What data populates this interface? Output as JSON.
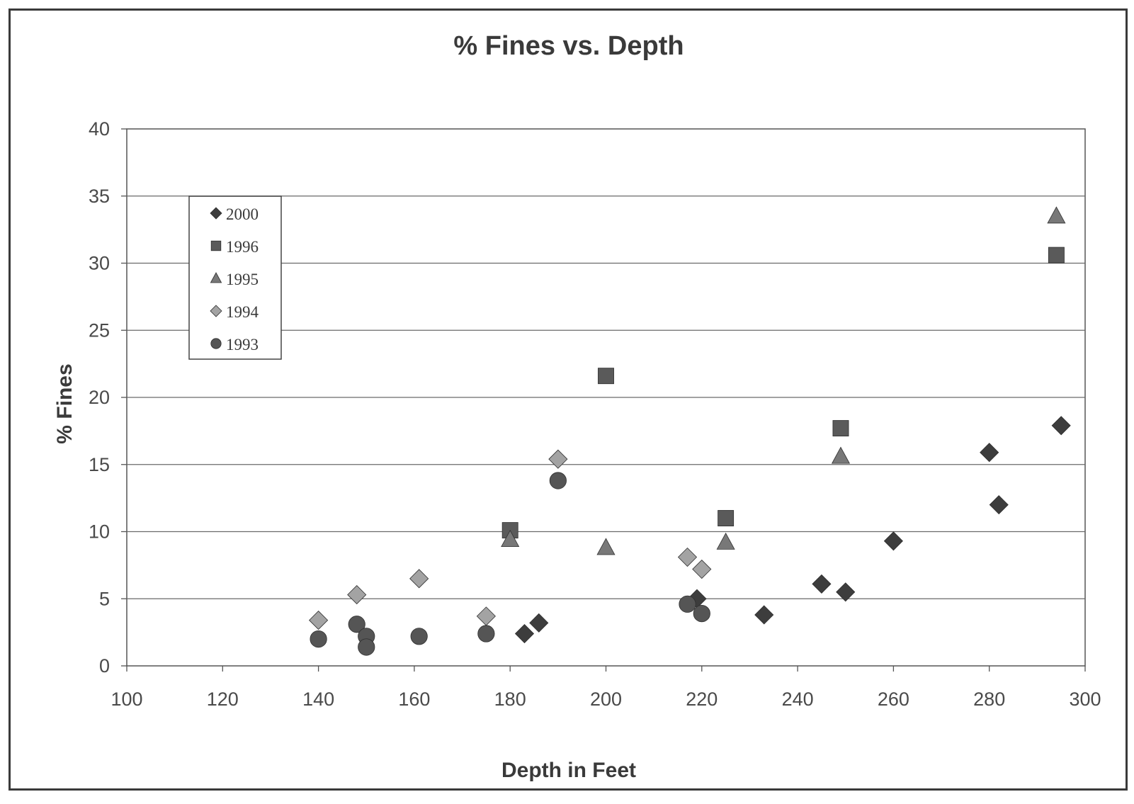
{
  "chart_data": {
    "type": "scatter",
    "title": "% Fines vs. Depth",
    "xlabel": "Depth in Feet",
    "ylabel": "% Fines",
    "xlim": [
      100,
      300
    ],
    "ylim": [
      0,
      40
    ],
    "x_ticks": [
      100,
      120,
      140,
      160,
      180,
      200,
      220,
      240,
      260,
      280,
      300
    ],
    "y_ticks": [
      0,
      5,
      10,
      15,
      20,
      25,
      30,
      35,
      40
    ],
    "grid": "horizontal",
    "legend_position": "top-left",
    "series": [
      {
        "name": "2000",
        "marker": "diamond",
        "color": "#3d3d3d",
        "points": [
          [
            183,
            2.4
          ],
          [
            186,
            3.2
          ],
          [
            219,
            5.0
          ],
          [
            233,
            3.8
          ],
          [
            245,
            6.1
          ],
          [
            250,
            5.5
          ],
          [
            260,
            9.3
          ],
          [
            280,
            15.9
          ],
          [
            282,
            12.0
          ],
          [
            295,
            17.9
          ]
        ]
      },
      {
        "name": "1996",
        "marker": "square",
        "color": "#5a5a5a",
        "points": [
          [
            180,
            10.1
          ],
          [
            200,
            21.6
          ],
          [
            225,
            11.0
          ],
          [
            249,
            17.7
          ],
          [
            294,
            30.6
          ]
        ]
      },
      {
        "name": "1995",
        "marker": "triangle",
        "color": "#787878",
        "points": [
          [
            180,
            9.4
          ],
          [
            200,
            8.8
          ],
          [
            225,
            9.2
          ],
          [
            249,
            15.6
          ],
          [
            294,
            33.5
          ]
        ]
      },
      {
        "name": "1994",
        "marker": "diamond",
        "color": "#a3a3a3",
        "points": [
          [
            140,
            3.4
          ],
          [
            148,
            5.3
          ],
          [
            161,
            6.5
          ],
          [
            175,
            3.7
          ],
          [
            190,
            15.4
          ],
          [
            217,
            8.1
          ],
          [
            220,
            7.2
          ]
        ]
      },
      {
        "name": "1993",
        "marker": "circle",
        "color": "#555555",
        "points": [
          [
            140,
            2.0
          ],
          [
            148,
            3.1
          ],
          [
            150,
            2.2
          ],
          [
            150,
            1.4
          ],
          [
            161,
            2.2
          ],
          [
            175,
            2.4
          ],
          [
            190,
            13.8
          ],
          [
            217,
            4.6
          ],
          [
            220,
            3.9
          ]
        ]
      }
    ]
  }
}
